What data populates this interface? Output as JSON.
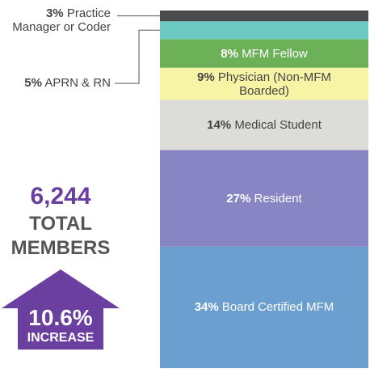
{
  "chart_data": {
    "type": "stacked_column",
    "categories": [
      "Board Certified MFM",
      "Resident",
      "Medical Student",
      "Physician (Non-MFM Boarded)",
      "MFM Fellow",
      "APRN & RN",
      "Practice Manager or Coder"
    ],
    "values": [
      34,
      27,
      14,
      9,
      8,
      5,
      3
    ],
    "value_labels": [
      "34%",
      "27%",
      "14%",
      "9%",
      "8%",
      "5%",
      "3%"
    ],
    "colors": [
      "#6a9fcf",
      "#8885c5",
      "#dcdcd8",
      "#f8f4a6",
      "#6cb158",
      "#6cc9c4",
      "#4a4b4d"
    ],
    "annotations": {
      "total": "6,244",
      "total_label": "TOTAL MEMBERS",
      "growth": "10.6%",
      "growth_label": "INCREASE"
    }
  }
}
